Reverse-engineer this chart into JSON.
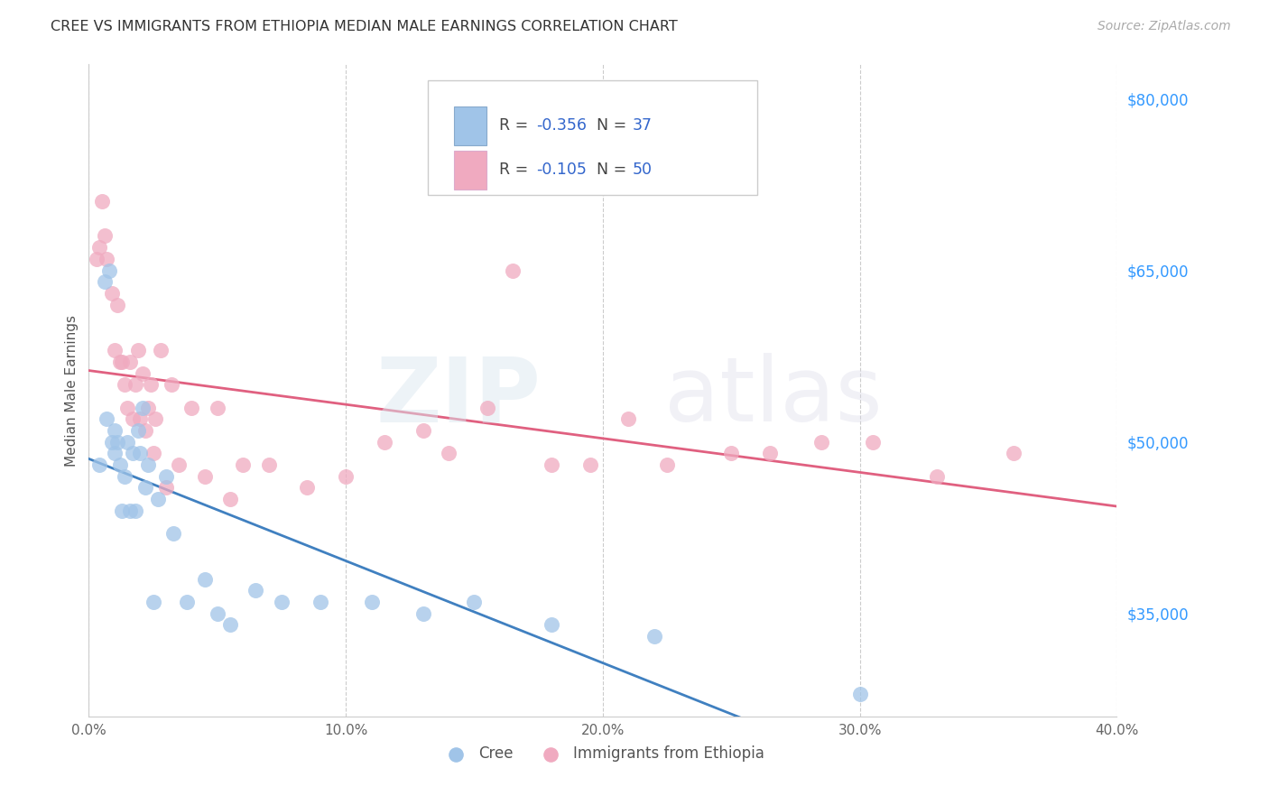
{
  "title": "CREE VS IMMIGRANTS FROM ETHIOPIA MEDIAN MALE EARNINGS CORRELATION CHART",
  "source": "Source: ZipAtlas.com",
  "ylabel": "Median Male Earnings",
  "yticks": [
    35000,
    50000,
    65000,
    80000
  ],
  "ytick_labels": [
    "$35,000",
    "$50,000",
    "$65,000",
    "$80,000"
  ],
  "xlim": [
    0.0,
    40.0
  ],
  "ylim": [
    26000,
    83000
  ],
  "cree_color": "#a0c4e8",
  "ethiopia_color": "#f0aac0",
  "cree_line_color": "#4080c0",
  "ethiopia_line_color": "#e06080",
  "legend_text_color": "#3366cc",
  "legend_label_color": "#333333",
  "cree_x": [
    0.4,
    0.6,
    0.7,
    0.8,
    0.9,
    1.0,
    1.0,
    1.1,
    1.2,
    1.3,
    1.4,
    1.5,
    1.6,
    1.7,
    1.8,
    1.9,
    2.0,
    2.1,
    2.2,
    2.3,
    2.5,
    2.7,
    3.0,
    3.3,
    3.8,
    4.5,
    5.0,
    5.5,
    6.5,
    7.5,
    9.0,
    11.0,
    13.0,
    15.0,
    18.0,
    22.0,
    30.0
  ],
  "cree_y": [
    48000,
    64000,
    52000,
    65000,
    50000,
    51000,
    49000,
    50000,
    48000,
    44000,
    47000,
    50000,
    44000,
    49000,
    44000,
    51000,
    49000,
    53000,
    46000,
    48000,
    36000,
    45000,
    47000,
    42000,
    36000,
    38000,
    35000,
    34000,
    37000,
    36000,
    36000,
    36000,
    35000,
    36000,
    34000,
    33000,
    28000
  ],
  "ethiopia_x": [
    0.3,
    0.4,
    0.5,
    0.6,
    0.7,
    0.9,
    1.0,
    1.1,
    1.2,
    1.3,
    1.4,
    1.5,
    1.6,
    1.7,
    1.8,
    1.9,
    2.0,
    2.1,
    2.2,
    2.3,
    2.4,
    2.5,
    2.6,
    2.8,
    3.0,
    3.2,
    3.5,
    4.0,
    4.5,
    5.0,
    5.5,
    6.0,
    7.0,
    8.5,
    10.0,
    11.5,
    13.0,
    14.0,
    15.5,
    16.5,
    18.0,
    19.5,
    21.0,
    22.5,
    25.0,
    26.5,
    28.5,
    30.5,
    33.0,
    36.0
  ],
  "ethiopia_y": [
    66000,
    67000,
    71000,
    68000,
    66000,
    63000,
    58000,
    62000,
    57000,
    57000,
    55000,
    53000,
    57000,
    52000,
    55000,
    58000,
    52000,
    56000,
    51000,
    53000,
    55000,
    49000,
    52000,
    58000,
    46000,
    55000,
    48000,
    53000,
    47000,
    53000,
    45000,
    48000,
    48000,
    46000,
    47000,
    50000,
    51000,
    49000,
    53000,
    65000,
    48000,
    48000,
    52000,
    48000,
    49000,
    49000,
    50000,
    50000,
    47000,
    49000
  ]
}
